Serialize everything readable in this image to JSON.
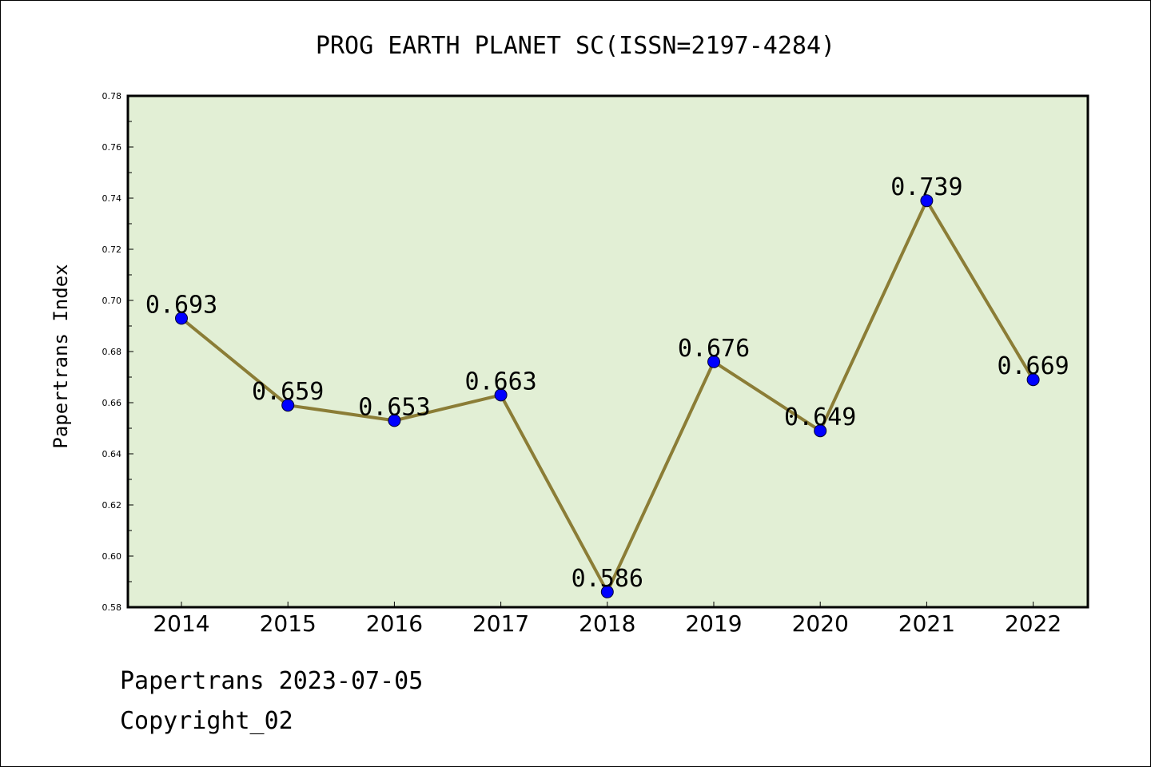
{
  "chart_data": {
    "type": "line",
    "title": "PROG EARTH PLANET SC(ISSN=2197-4284)",
    "xlabel": "",
    "ylabel": "Papertrans Index",
    "categories": [
      "2014",
      "2015",
      "2016",
      "2017",
      "2018",
      "2019",
      "2020",
      "2021",
      "2022"
    ],
    "values": [
      0.693,
      0.659,
      0.653,
      0.663,
      0.586,
      0.676,
      0.649,
      0.739,
      0.669
    ],
    "data_labels": [
      "0.693",
      "0.659",
      "0.653",
      "0.663",
      "0.586",
      "0.676",
      "0.649",
      "0.739",
      "0.669"
    ],
    "ylim": [
      0.58,
      0.78
    ],
    "yticks": [
      "0.58",
      "0.60",
      "0.62",
      "0.64",
      "0.66",
      "0.68",
      "0.70",
      "0.72",
      "0.74",
      "0.76",
      "0.78"
    ],
    "grid": false,
    "legend": "none",
    "colors": {
      "plot_background": "#e2efd5",
      "line": "#8b7d36",
      "marker": "#0000ff"
    }
  },
  "footer": {
    "line1": "Papertrans 2023-07-05",
    "line2": "Copyright_02"
  }
}
